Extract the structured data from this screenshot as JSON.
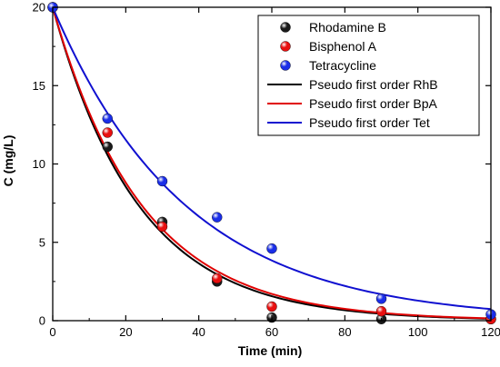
{
  "chart_data": {
    "type": "scatter",
    "title": "",
    "xlabel": "Time (min)",
    "ylabel": "C (mg/L)",
    "xlim": [
      0,
      120
    ],
    "ylim": [
      0,
      20
    ],
    "xticks": [
      0,
      20,
      40,
      60,
      80,
      100,
      120
    ],
    "yticks": [
      0,
      5,
      10,
      15,
      20
    ],
    "grid": false,
    "legend_position": "top-right",
    "series": [
      {
        "name": "Rhodamine B",
        "kind": "points",
        "color": "#1a1a1a",
        "x": [
          0,
          15,
          30,
          45,
          60,
          90,
          120
        ],
        "y": [
          20,
          11.1,
          6.3,
          2.5,
          0.2,
          0.1,
          0.1
        ]
      },
      {
        "name": "Bisphenol A",
        "kind": "points",
        "color": "#e81010",
        "x": [
          0,
          15,
          30,
          45,
          60,
          90,
          120
        ],
        "y": [
          20,
          12.0,
          6.0,
          2.7,
          0.9,
          0.6,
          0.1
        ]
      },
      {
        "name": "Tetracycline",
        "kind": "points",
        "color": "#1a2ee8",
        "x": [
          0,
          15,
          30,
          45,
          60,
          90,
          120
        ],
        "y": [
          20,
          12.9,
          8.9,
          6.6,
          4.6,
          1.4,
          0.4
        ]
      },
      {
        "name": "Pseudo first order RhB",
        "kind": "line",
        "color": "#000000",
        "model": "exponential",
        "c0": 20,
        "k": 0.0425,
        "x_range": [
          0,
          120
        ]
      },
      {
        "name": "Pseudo first order BpA",
        "kind": "line",
        "color": "#e00000",
        "model": "exponential",
        "c0": 20,
        "k": 0.041,
        "x_range": [
          0,
          120
        ]
      },
      {
        "name": "Pseudo first order Tet",
        "kind": "line",
        "color": "#1010d0",
        "model": "exponential",
        "c0": 20,
        "k": 0.0275,
        "x_range": [
          0,
          120
        ]
      }
    ]
  }
}
